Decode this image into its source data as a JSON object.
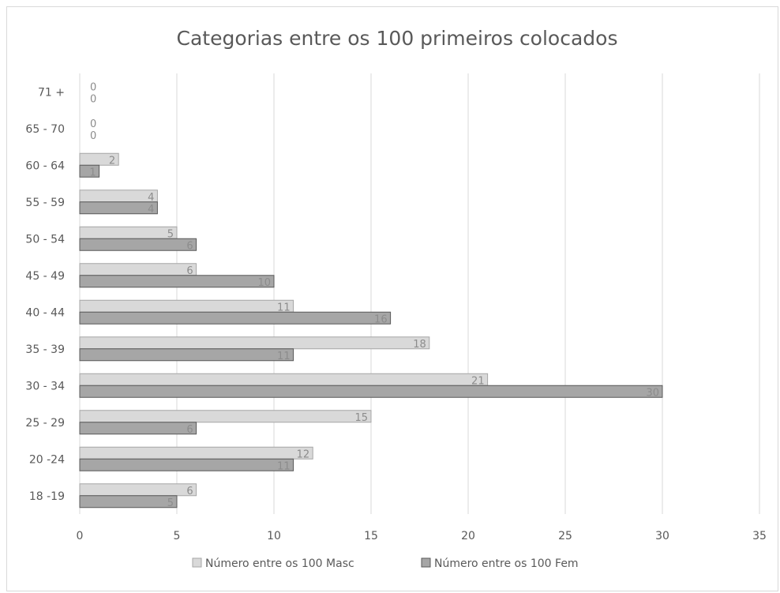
{
  "chart_data": {
    "type": "bar",
    "orientation": "horizontal",
    "title": "Categorias  entre  os 100 primeiros  colocados",
    "categories": [
      "18 -19",
      "20 -24",
      "25 - 29",
      "30 - 34",
      "35 - 39",
      "40 - 44",
      "45 - 49",
      "50 - 54",
      "55 - 59",
      "60 - 64",
      "65 - 70",
      "71 +"
    ],
    "series": [
      {
        "name": "Número entre os 100 Masc",
        "color": "#d9d9d9",
        "values": [
          6,
          12,
          15,
          21,
          18,
          11,
          6,
          5,
          4,
          2,
          0,
          0
        ]
      },
      {
        "name": "Número entre os 100 Fem",
        "color": "#a6a6a6",
        "values": [
          5,
          11,
          6,
          30,
          11,
          16,
          10,
          6,
          4,
          1,
          0,
          0
        ]
      }
    ],
    "xticks": [
      "0",
      "5",
      "10",
      "15",
      "20",
      "25",
      "30",
      "35"
    ],
    "xlim": [
      0,
      35
    ],
    "grid": true,
    "legend_position": "bottom"
  }
}
